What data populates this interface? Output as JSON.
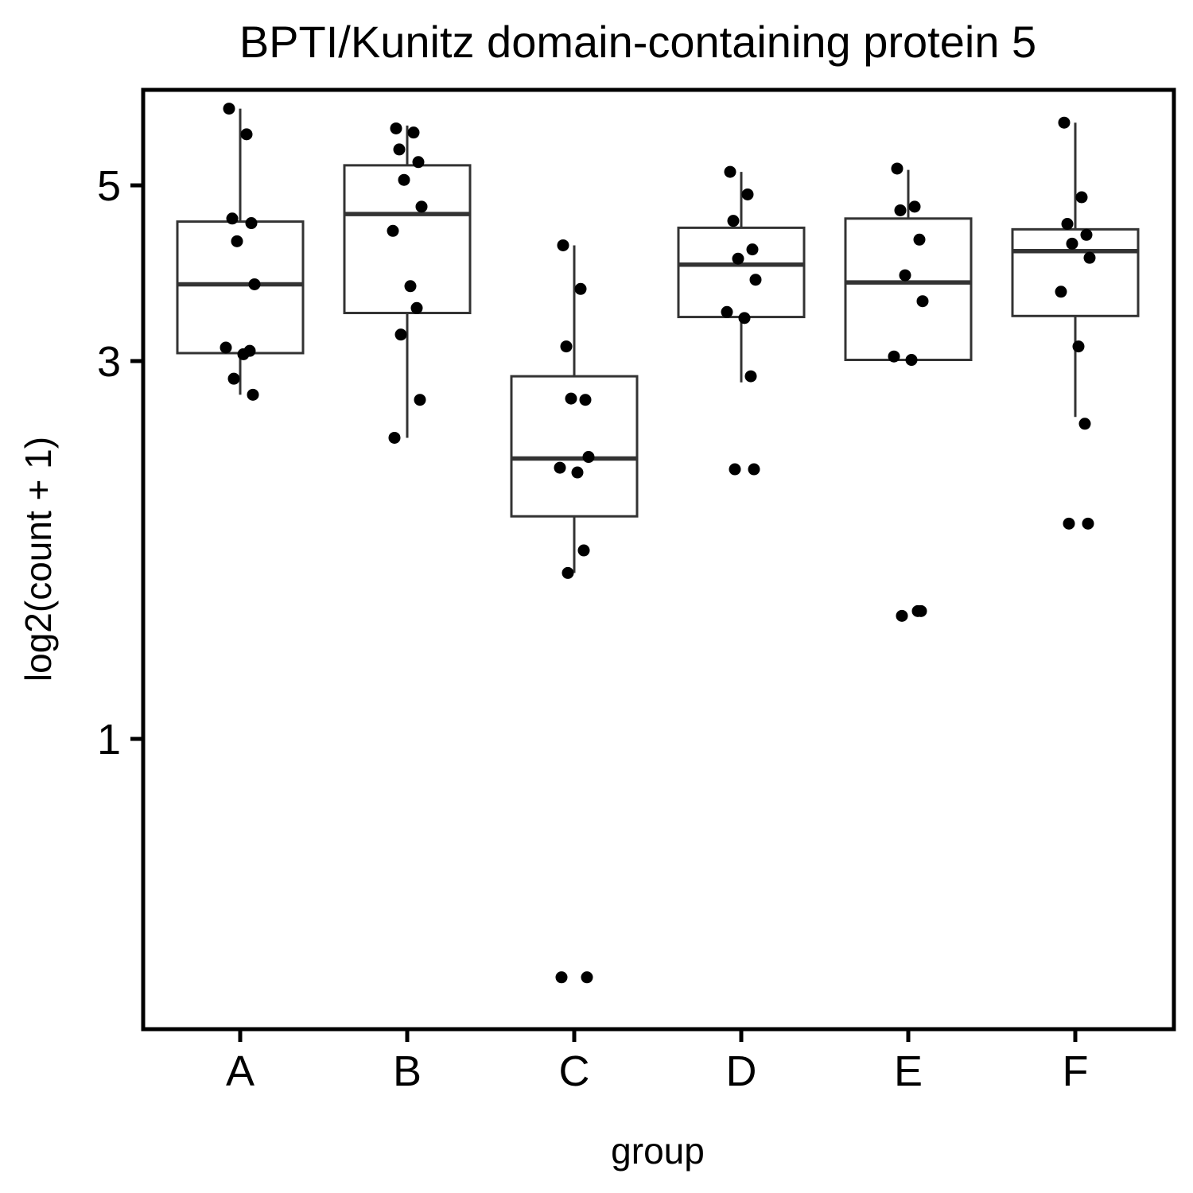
{
  "chart_data": {
    "type": "box",
    "title": "BPTI/Kunitz domain-containing protein 5",
    "xlabel": "group",
    "ylabel": "log2(count + 1)",
    "y_scale": "log",
    "ylim": [
      0.43,
      6.6
    ],
    "yticks": [
      1,
      3,
      5
    ],
    "grid": false,
    "legend": "none",
    "categories": [
      "A",
      "B",
      "C",
      "D",
      "E",
      "F"
    ],
    "colors": {
      "box": "#333333",
      "point": "#000000",
      "frame": "#000000",
      "background": "#ffffff"
    },
    "boxes": [
      {
        "group": "A",
        "min": 2.72,
        "q1": 3.07,
        "median": 3.75,
        "q3": 4.5,
        "max": 6.25
      },
      {
        "group": "B",
        "min": 2.4,
        "q1": 3.45,
        "median": 4.6,
        "q3": 5.3,
        "max": 5.95
      },
      {
        "group": "C",
        "min": 1.62,
        "q1": 1.91,
        "median": 2.26,
        "q3": 2.87,
        "max": 4.2
      },
      {
        "group": "D",
        "min": 2.82,
        "q1": 3.41,
        "median": 3.97,
        "q3": 4.42,
        "max": 5.2
      },
      {
        "group": "E",
        "min": 3.0,
        "q1": 3.01,
        "median": 3.77,
        "q3": 4.54,
        "max": 5.23
      },
      {
        "group": "F",
        "min": 2.55,
        "q1": 3.42,
        "median": 4.13,
        "q3": 4.4,
        "max": 6.0
      }
    ],
    "points": [
      {
        "group": "A",
        "values": [
          6.25,
          5.8,
          4.54,
          4.48,
          4.25,
          3.75,
          3.12,
          3.06,
          3.09,
          2.85,
          2.72
        ]
      },
      {
        "group": "B",
        "values": [
          5.9,
          5.83,
          5.55,
          5.35,
          5.08,
          4.7,
          4.38,
          3.73,
          3.5,
          3.24,
          2.68,
          2.4
        ]
      },
      {
        "group": "C",
        "values": [
          4.2,
          3.7,
          3.13,
          2.68,
          2.69,
          2.27,
          2.2,
          2.17,
          1.73,
          1.62,
          0.5,
          0.5
        ]
      },
      {
        "group": "D",
        "values": [
          5.2,
          4.87,
          4.51,
          4.15,
          4.04,
          3.8,
          3.46,
          3.4,
          2.87,
          2.19,
          2.19
        ]
      },
      {
        "group": "E",
        "values": [
          5.25,
          4.7,
          4.65,
          4.27,
          3.85,
          3.57,
          3.04,
          3.01,
          1.45,
          1.43,
          1.45
        ]
      },
      {
        "group": "F",
        "values": [
          6.0,
          4.83,
          4.47,
          4.33,
          4.22,
          4.05,
          3.67,
          3.13,
          2.5,
          1.87,
          1.87
        ]
      }
    ]
  }
}
